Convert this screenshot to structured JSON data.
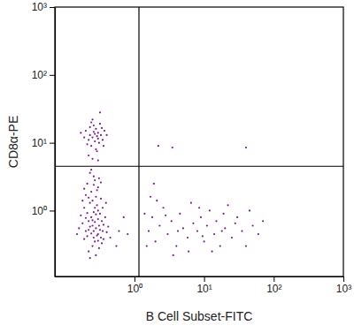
{
  "chart_data": {
    "type": "scatter",
    "x_label": "B Cell Subset-FITC",
    "y_label": "CD8α-PE",
    "log": true,
    "grid": false,
    "color": "#7a1f92",
    "marker": "dot",
    "xlim": [
      0.072,
      1000
    ],
    "ylim": [
      0.107,
      1000
    ],
    "xticks": [
      {
        "value": 1,
        "label": "10⁰"
      },
      {
        "value": 10,
        "label": "10¹"
      },
      {
        "value": 100,
        "label": "10²"
      },
      {
        "value": 1000,
        "label": "10³"
      }
    ],
    "yticks": [
      {
        "value": 1,
        "label": "10⁰"
      },
      {
        "value": 10,
        "label": "10¹"
      },
      {
        "value": 100,
        "label": "10²"
      },
      {
        "value": 1000,
        "label": "10³"
      }
    ],
    "gates": {
      "x": 1.16,
      "y": 4.5
    },
    "x": [
      0.2,
      0.25,
      0.3,
      0.22,
      0.28,
      0.33,
      0.18,
      0.24,
      0.35,
      0.27,
      0.21,
      0.3,
      0.26,
      0.19,
      0.23,
      0.29,
      0.32,
      0.36,
      0.4,
      0.16,
      0.25,
      0.31,
      0.22,
      0.28,
      0.24,
      0.3,
      0.21,
      0.27,
      0.33,
      0.26,
      0.23,
      0.29,
      0.2,
      0.35,
      0.38,
      0.17,
      0.19,
      0.34,
      0.26,
      0.23,
      0.31,
      0.27,
      0.22,
      0.29,
      0.25,
      0.32,
      0.2,
      0.24,
      0.28,
      0.3,
      0.25,
      0.21,
      0.34,
      0.42,
      0.45,
      0.15,
      0.18,
      0.26,
      0.31,
      0.24,
      0.28,
      0.23,
      0.36,
      0.39,
      0.33,
      0.27,
      0.22,
      0.19,
      0.3,
      0.26,
      0.25,
      0.3,
      0.22,
      0.28,
      0.33,
      0.2,
      0.26,
      0.35,
      0.24,
      0.31,
      0.27,
      0.23,
      0.29,
      0.19,
      0.37,
      0.32,
      0.25,
      0.28,
      0.21,
      0.34,
      0.4,
      0.26,
      0.3,
      0.23,
      0.27,
      0.17,
      0.36,
      0.24,
      0.29,
      0.32,
      0.22,
      0.3,
      0.25,
      1.6,
      1.8,
      2.0,
      2.3,
      2.6,
      3.0,
      3.4,
      4.0,
      4.5,
      5,
      5.8,
      6.5,
      7,
      8,
      9,
      10,
      11,
      12,
      14,
      15,
      17,
      19,
      20,
      22,
      25,
      28,
      30,
      35,
      40,
      45,
      50,
      60,
      70,
      1.4,
      1.5,
      2.1,
      3.6,
      6,
      13,
      1.7,
      2.8,
      8.5,
      18,
      4.2,
      9.5,
      3.5,
      40,
      1.9,
      2.2,
      0.6,
      0.7,
      0.55,
      0.8
    ],
    "y": [
      0.5,
      0.6,
      0.45,
      0.7,
      0.55,
      0.4,
      0.65,
      0.8,
      0.5,
      0.35,
      0.42,
      0.75,
      0.95,
      1.1,
      1.3,
      1.2,
      0.9,
      0.62,
      0.48,
      0.55,
      0.3,
      0.28,
      0.25,
      1.6,
      1.9,
      2.2,
      2.5,
      2.8,
      1.5,
      3.2,
      3.6,
      2.0,
      1.7,
      1.1,
      0.8,
      0.85,
      0.38,
      0.33,
      0.5,
      0.58,
      0.6,
      0.68,
      0.52,
      0.43,
      0.72,
      0.52,
      0.78,
      0.46,
      0.88,
      1.0,
      1.4,
      0.92,
      0.7,
      0.58,
      0.4,
      0.45,
      1.4,
      2.4,
      3.0,
      4.0,
      0.22,
      0.2,
      0.38,
      1.3,
      2.6,
      1.1,
      1.55,
      2.1,
      0.36,
      0.4,
      12,
      14,
      11,
      16,
      13,
      15,
      18,
      11,
      9,
      10,
      13.5,
      17,
      12.5,
      12,
      15,
      19,
      22,
      8,
      9.5,
      16.5,
      13,
      14.5,
      11.5,
      13,
      10.5,
      14,
      9,
      20,
      7.5,
      28,
      6.5,
      5.5,
      5.8,
      0.5,
      0.8,
      0.35,
      0.6,
      1.1,
      0.45,
      0.7,
      0.3,
      0.9,
      0.55,
      0.4,
      1.3,
      0.65,
      0.5,
      0.8,
      0.35,
      0.6,
      1.0,
      0.45,
      0.7,
      0.3,
      0.9,
      0.55,
      1.2,
      0.4,
      0.65,
      0.8,
      0.5,
      0.3,
      1.0,
      0.6,
      0.45,
      0.7,
      0.9,
      0.3,
      1.4,
      0.22,
      0.25,
      0.25,
      1.6,
      0.85,
      1.1,
      0.5,
      0.5,
      0.42,
      8.5,
      8.5,
      2.5,
      9,
      0.5,
      0.8,
      0.3,
      0.45
    ]
  }
}
